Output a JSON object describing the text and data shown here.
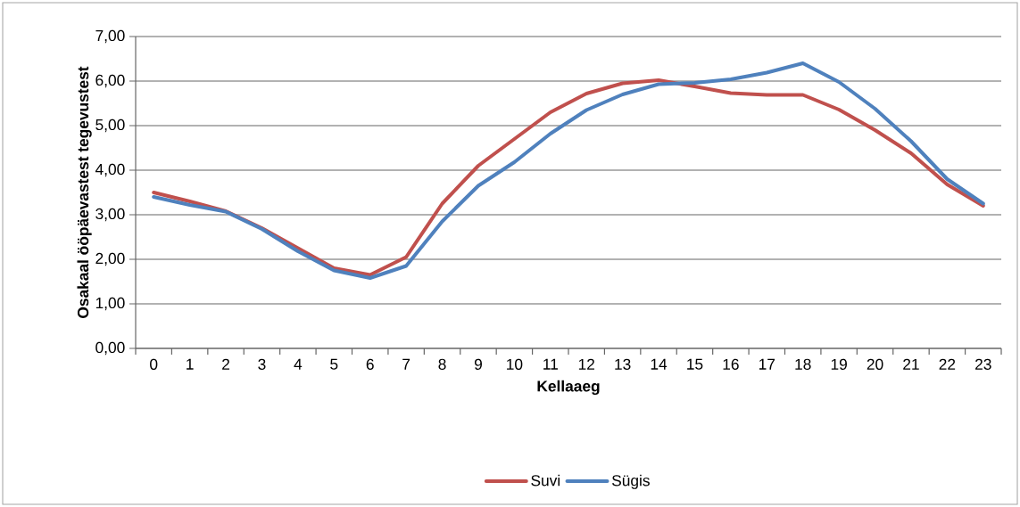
{
  "chart_data": {
    "type": "line",
    "xlabel": "Kellaaeg",
    "ylabel": "Osakaal ööpäevastest tegevustest",
    "categories": [
      "0",
      "1",
      "2",
      "3",
      "4",
      "5",
      "6",
      "7",
      "8",
      "9",
      "10",
      "11",
      "12",
      "13",
      "14",
      "15",
      "16",
      "17",
      "18",
      "19",
      "20",
      "21",
      "22",
      "23"
    ],
    "series": [
      {
        "name": "Suvi",
        "color": "#c0504d",
        "values": [
          3.5,
          3.3,
          3.08,
          2.7,
          2.25,
          1.8,
          1.65,
          2.05,
          3.25,
          4.1,
          4.7,
          5.3,
          5.72,
          5.95,
          6.02,
          5.88,
          5.73,
          5.69,
          5.69,
          5.36,
          4.9,
          4.38,
          3.68,
          3.2
        ]
      },
      {
        "name": "Sügis",
        "color": "#4f81bd",
        "values": [
          3.4,
          3.22,
          3.07,
          2.68,
          2.18,
          1.75,
          1.58,
          1.85,
          2.85,
          3.65,
          4.18,
          4.82,
          5.35,
          5.7,
          5.93,
          5.96,
          6.04,
          6.19,
          6.4,
          5.98,
          5.38,
          4.65,
          3.8,
          3.25
        ]
      }
    ],
    "ylim": [
      0,
      7
    ],
    "yticks": [
      {
        "value": 0,
        "label": "0,00"
      },
      {
        "value": 1,
        "label": "1,00"
      },
      {
        "value": 2,
        "label": "2,00"
      },
      {
        "value": 3,
        "label": "3,00"
      },
      {
        "value": 4,
        "label": "4,00"
      },
      {
        "value": 5,
        "label": "5,00"
      },
      {
        "value": 6,
        "label": "6,00"
      },
      {
        "value": 7,
        "label": "7,00"
      }
    ],
    "grid": "y",
    "legend": "bottom",
    "marker": "none",
    "line_style": "solid"
  }
}
